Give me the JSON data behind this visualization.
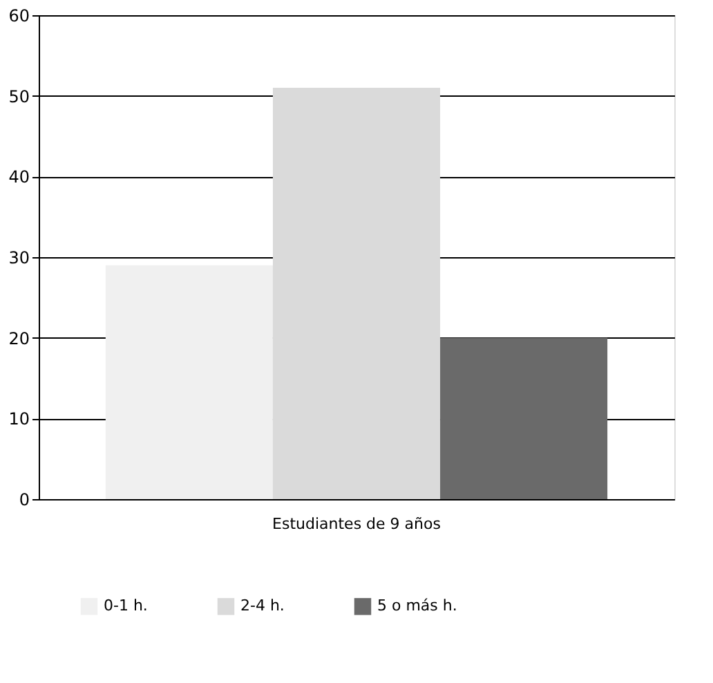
{
  "chart_data": {
    "type": "bar",
    "categories": [
      "Estudiantes de 9 años"
    ],
    "series": [
      {
        "name": "0-1 h.",
        "color": "#f0f0f0",
        "values": [
          29
        ]
      },
      {
        "name": "2-4 h.",
        "color": "#dadada",
        "values": [
          51
        ]
      },
      {
        "name": "5 o más h.",
        "color": "#6a6a6a",
        "values": [
          20
        ]
      }
    ],
    "ylim": [
      0,
      60
    ],
    "yticks": [
      0,
      10,
      20,
      30,
      40,
      50,
      60
    ],
    "grid": "y",
    "legend": "bottom"
  }
}
